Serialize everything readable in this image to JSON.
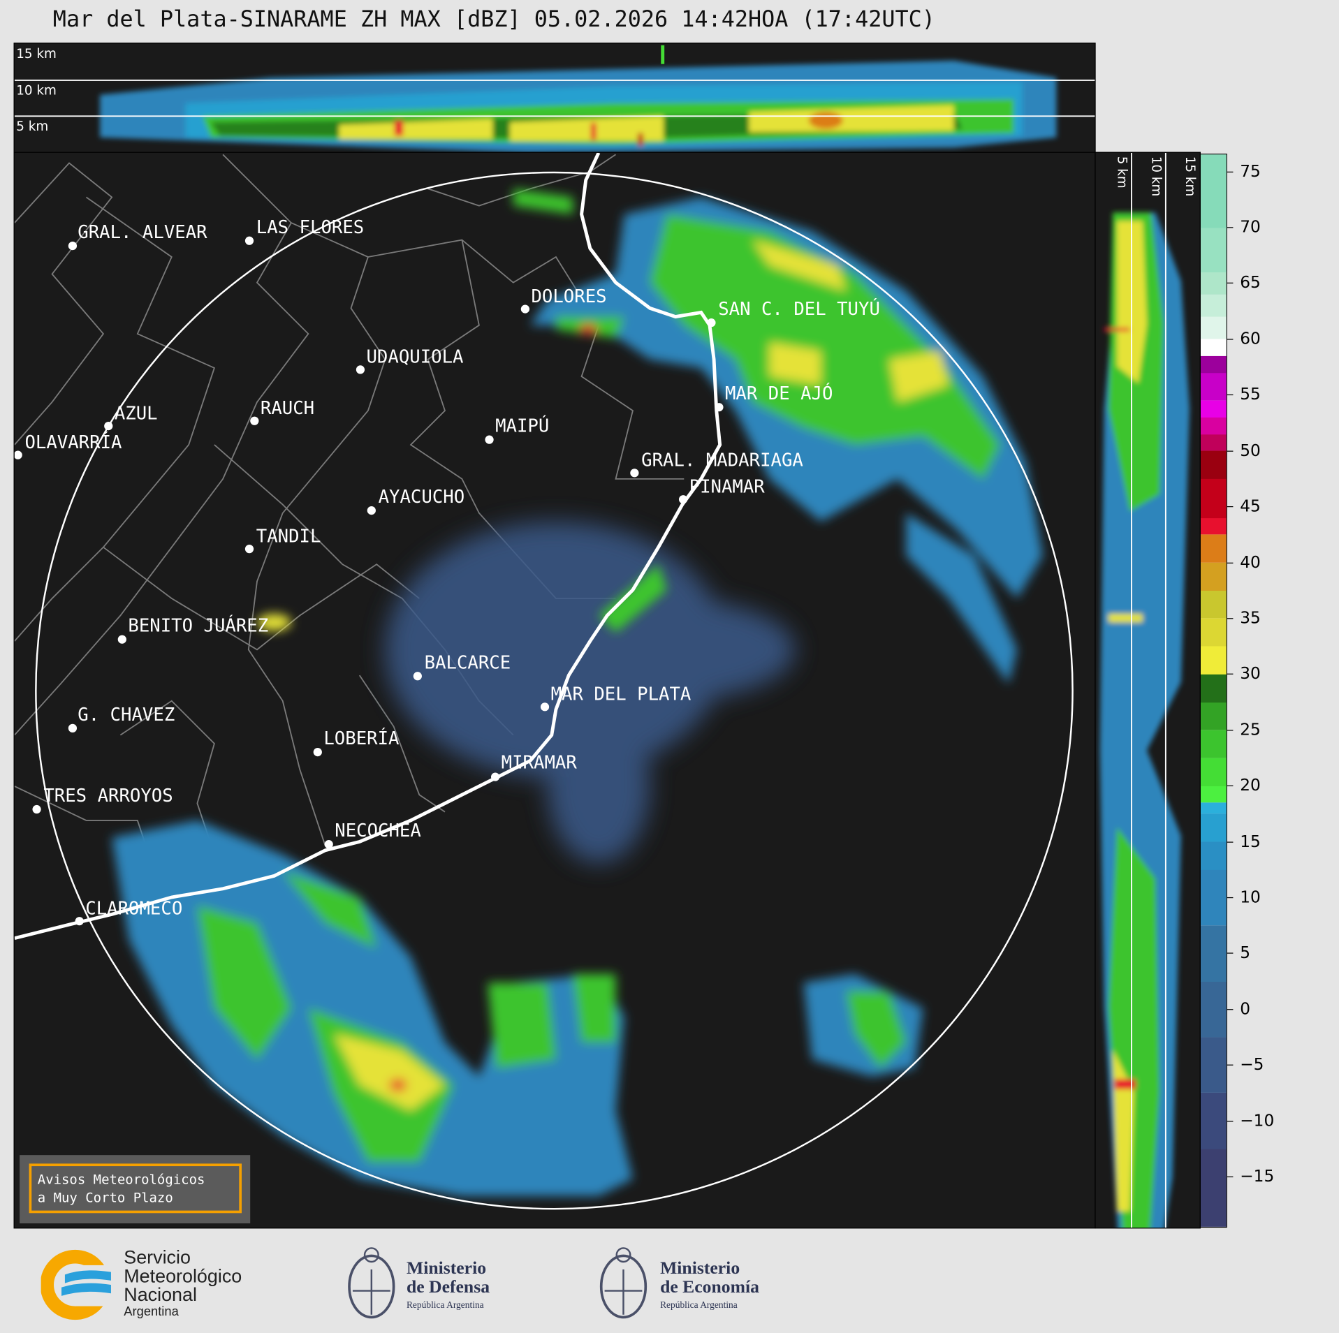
{
  "title": "Mar del Plata-SINARAME ZH MAX [dBZ] 05.02.2026 14:42HOA (17:42UTC)",
  "top_panel": {
    "height_labels": [
      "15 km",
      "10 km",
      "5 km"
    ]
  },
  "side_panel": {
    "height_labels": [
      "5 km",
      "10 km",
      "15 km"
    ]
  },
  "map": {
    "cities": [
      {
        "name": "GRAL. ALVEAR"
      },
      {
        "name": "LAS FLORES"
      },
      {
        "name": "DOLORES"
      },
      {
        "name": "SAN C. DEL TUYÚ"
      },
      {
        "name": "UDAQUIOLA"
      },
      {
        "name": "AZUL"
      },
      {
        "name": "RAUCH"
      },
      {
        "name": "MAIPÚ"
      },
      {
        "name": "OLAVARRÍA"
      },
      {
        "name": "MAR DE AJÓ"
      },
      {
        "name": "GRAL. MADARIAGA"
      },
      {
        "name": "PINAMAR"
      },
      {
        "name": "AYACUCHO"
      },
      {
        "name": "TANDIL"
      },
      {
        "name": "BENITO JUÁREZ"
      },
      {
        "name": "BALCARCE"
      },
      {
        "name": "MAR DEL PLATA"
      },
      {
        "name": "G. CHAVEZ"
      },
      {
        "name": "LOBERÍA"
      },
      {
        "name": "MIRAMAR"
      },
      {
        "name": "TRES ARROYOS"
      },
      {
        "name": "NECOCHEA"
      },
      {
        "name": "CLAROMECO"
      }
    ]
  },
  "colorbar": {
    "unit": "dBZ",
    "range": [
      -19.5,
      76.5
    ],
    "ticks": [
      "75",
      "70",
      "65",
      "60",
      "55",
      "50",
      "45",
      "40",
      "35",
      "30",
      "25",
      "20",
      "15",
      "10",
      "5",
      "0",
      "−5",
      "−10",
      "−15"
    ],
    "tick_values": [
      75,
      70,
      65,
      60,
      55,
      50,
      45,
      40,
      35,
      30,
      25,
      20,
      15,
      10,
      5,
      0,
      -5,
      -10,
      -15
    ],
    "bands": [
      {
        "from": -19.5,
        "to": -12.5,
        "color": "#3c4070"
      },
      {
        "from": -12.5,
        "to": -7.5,
        "color": "#3b4a7c"
      },
      {
        "from": -7.5,
        "to": -2.5,
        "color": "#3a5a8a"
      },
      {
        "from": -2.5,
        "to": 2.5,
        "color": "#386796"
      },
      {
        "from": 2.5,
        "to": 7.5,
        "color": "#3574a3"
      },
      {
        "from": 7.5,
        "to": 12.5,
        "color": "#2f85bb"
      },
      {
        "from": 12.5,
        "to": 15,
        "color": "#2a8fc4"
      },
      {
        "from": 15,
        "to": 17.5,
        "color": "#28a0d0"
      },
      {
        "from": 17.5,
        "to": 18.5,
        "color": "#2bb0dc"
      },
      {
        "from": 18.5,
        "to": 20,
        "color": "#4cf040"
      },
      {
        "from": 20,
        "to": 22.5,
        "color": "#44dd35"
      },
      {
        "from": 22.5,
        "to": 25,
        "color": "#3cc42e"
      },
      {
        "from": 25,
        "to": 27.5,
        "color": "#33a325"
      },
      {
        "from": 27.5,
        "to": 30,
        "color": "#237019"
      },
      {
        "from": 30,
        "to": 32.5,
        "color": "#f0ec38"
      },
      {
        "from": 32.5,
        "to": 35,
        "color": "#dcd733"
      },
      {
        "from": 35,
        "to": 37.5,
        "color": "#c9c72e"
      },
      {
        "from": 37.5,
        "to": 40,
        "color": "#d4a020"
      },
      {
        "from": 40,
        "to": 42.5,
        "color": "#dc7d18"
      },
      {
        "from": 42.5,
        "to": 44,
        "color": "#e8102e"
      },
      {
        "from": 44,
        "to": 47.5,
        "color": "#c4001a"
      },
      {
        "from": 47.5,
        "to": 50,
        "color": "#9a0010"
      },
      {
        "from": 50,
        "to": 51.5,
        "color": "#c0005a"
      },
      {
        "from": 51.5,
        "to": 53,
        "color": "#d900a0"
      },
      {
        "from": 53,
        "to": 54.5,
        "color": "#e800e6"
      },
      {
        "from": 54.5,
        "to": 57,
        "color": "#c800c8"
      },
      {
        "from": 57,
        "to": 58.5,
        "color": "#9c009c"
      },
      {
        "from": 58.5,
        "to": 60,
        "color": "#ffffff"
      },
      {
        "from": 60,
        "to": 62,
        "color": "#e0f5ea"
      },
      {
        "from": 62,
        "to": 64,
        "color": "#c6eed9"
      },
      {
        "from": 64,
        "to": 66,
        "color": "#aee6c9"
      },
      {
        "from": 66,
        "to": 70,
        "color": "#98e1c1"
      },
      {
        "from": 70,
        "to": 76.5,
        "color": "#86dbb9"
      }
    ]
  },
  "legend": {
    "line1": "Avisos Meteorológicos",
    "line2": "a Muy Corto Plazo"
  },
  "footer": {
    "smn": {
      "line1": "Servicio",
      "line2": "Meteorológico",
      "line3": "Nacional",
      "line4": "Argentina"
    },
    "defensa": {
      "line1": "Ministerio",
      "line2": "de Defensa",
      "line3": "República Argentina"
    },
    "economia": {
      "line1": "Ministerio",
      "line2": "de Economía",
      "line3": "República Argentina"
    }
  },
  "colors": {
    "background": "#e5e5e5",
    "map_bg": "#1a1a1a",
    "legend_border": "#f5a000",
    "smn_orange": "#f7a800",
    "smn_blue": "#2aa0dc"
  }
}
